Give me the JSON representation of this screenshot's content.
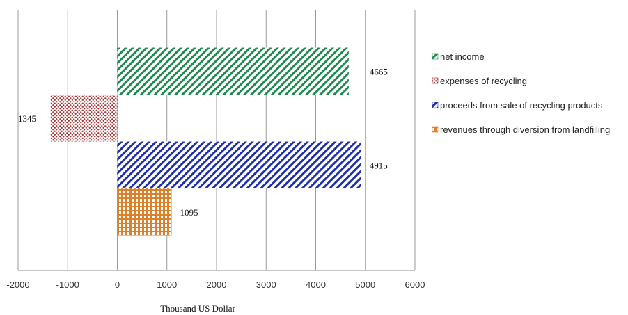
{
  "chart_data": {
    "type": "bar",
    "orientation": "horizontal",
    "xlabel": "Thousand US Dollar",
    "xlim": [
      -2000,
      6000
    ],
    "xticks": [
      -2000,
      -1000,
      0,
      1000,
      2000,
      3000,
      4000,
      5000,
      6000
    ],
    "grid": "vertical",
    "legend_position": "right",
    "series": [
      {
        "name": "net income",
        "value": 4665,
        "label": "4665",
        "color": "#1e8a4f",
        "pattern": "diagonal-lines"
      },
      {
        "name": "expenses of recycling",
        "value": -1345,
        "label": "1345",
        "color": "#a83232",
        "pattern": "dots"
      },
      {
        "name": "proceeds from sale of recycling products",
        "value": 4915,
        "label": "4915",
        "color": "#1f2fa8",
        "pattern": "diagonal-lines"
      },
      {
        "name": "revenues through diversion from landfilling",
        "value": 1095,
        "label": "1095",
        "color": "#d9822b",
        "pattern": "checker"
      }
    ]
  }
}
